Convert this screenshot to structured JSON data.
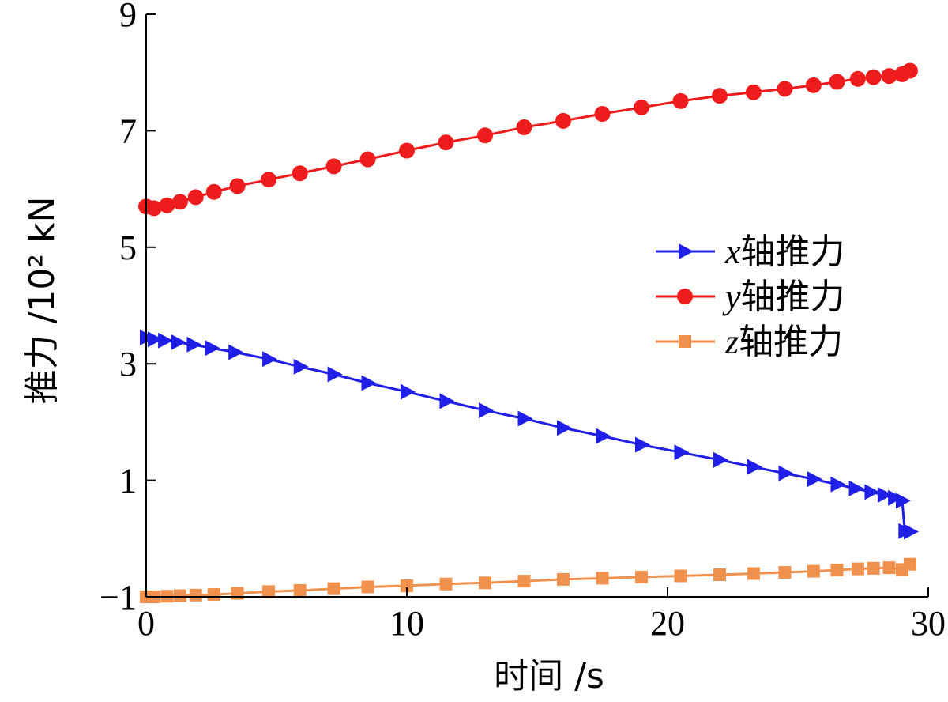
{
  "chart_data": {
    "type": "line",
    "xlabel": "时间 /s",
    "ylabel": "推力 /10² kN",
    "xlim": [
      0,
      30
    ],
    "ylim": [
      -1,
      9
    ],
    "xticks": [
      "0",
      "10",
      "20",
      "30"
    ],
    "xtick_values": [
      0,
      10,
      20,
      30
    ],
    "yticks": [
      "−1",
      "1",
      "3",
      "5",
      "7",
      "9"
    ],
    "ytick_values": [
      -1,
      1,
      3,
      5,
      7,
      9
    ],
    "legend_position": "right",
    "series": [
      {
        "name": "x轴推力",
        "name_var": "x",
        "name_suffix": "轴推力",
        "color": "#1f1fe8",
        "marker": "triangle-right",
        "x": [
          0,
          0.3,
          0.7,
          1.2,
          1.8,
          2.5,
          3.4,
          4.7,
          5.9,
          7.2,
          8.5,
          10,
          11.5,
          13,
          14.5,
          16,
          17.5,
          19,
          20.5,
          22,
          23.3,
          24.5,
          25.6,
          26.5,
          27.2,
          27.8,
          28.3,
          28.7,
          29,
          29.1,
          29.3
        ],
        "y": [
          3.45,
          3.42,
          3.4,
          3.37,
          3.33,
          3.27,
          3.2,
          3.08,
          2.95,
          2.82,
          2.67,
          2.52,
          2.36,
          2.2,
          2.06,
          1.9,
          1.76,
          1.61,
          1.48,
          1.35,
          1.23,
          1.12,
          1.02,
          0.93,
          0.86,
          0.8,
          0.75,
          0.7,
          0.65,
          0.13,
          0.12
        ]
      },
      {
        "name": "y轴推力",
        "name_var": "y",
        "name_suffix": "轴推力",
        "color": "#ee1c1c",
        "marker": "circle",
        "x": [
          0,
          0.3,
          0.8,
          1.3,
          1.9,
          2.6,
          3.5,
          4.7,
          5.9,
          7.2,
          8.5,
          10,
          11.5,
          13,
          14.5,
          16,
          17.5,
          19,
          20.5,
          22,
          23.3,
          24.5,
          25.6,
          26.5,
          27.3,
          27.9,
          28.5,
          29,
          29.3
        ],
        "y": [
          5.7,
          5.67,
          5.72,
          5.78,
          5.86,
          5.95,
          6.05,
          6.16,
          6.27,
          6.39,
          6.51,
          6.66,
          6.8,
          6.92,
          7.06,
          7.17,
          7.29,
          7.4,
          7.51,
          7.6,
          7.66,
          7.72,
          7.78,
          7.84,
          7.89,
          7.92,
          7.94,
          7.97,
          8.03
        ]
      },
      {
        "name": "z轴推力",
        "name_var": "z",
        "name_suffix": "轴推力",
        "color": "#f0924e",
        "marker": "square",
        "x": [
          0,
          0.3,
          0.8,
          1.3,
          1.9,
          2.6,
          3.5,
          4.7,
          5.9,
          7.2,
          8.5,
          10,
          11.5,
          13,
          14.5,
          16,
          17.5,
          19,
          20.5,
          22,
          23.3,
          24.5,
          25.6,
          26.5,
          27.3,
          27.9,
          28.5,
          29,
          29.3
        ],
        "y": [
          -1,
          -1,
          -0.99,
          -0.98,
          -0.97,
          -0.96,
          -0.94,
          -0.91,
          -0.89,
          -0.86,
          -0.83,
          -0.81,
          -0.78,
          -0.76,
          -0.73,
          -0.7,
          -0.68,
          -0.66,
          -0.64,
          -0.62,
          -0.6,
          -0.58,
          -0.56,
          -0.54,
          -0.52,
          -0.51,
          -0.5,
          -0.53,
          -0.44
        ]
      }
    ]
  }
}
